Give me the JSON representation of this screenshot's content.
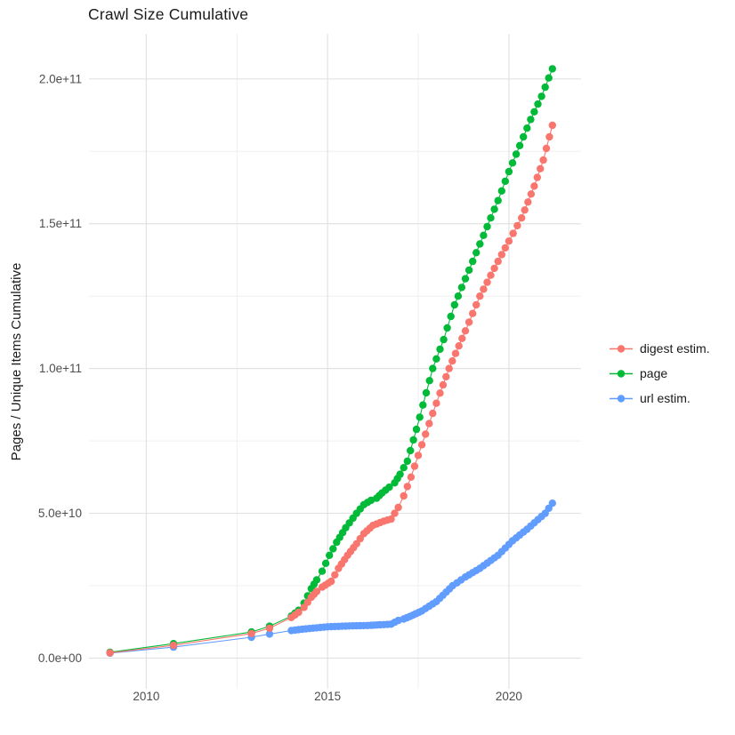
{
  "page": {
    "title": "Crawl Size Cumulative"
  },
  "chart_data": {
    "type": "scatter",
    "title": "Crawl Size Cumulative",
    "xlabel": "",
    "ylabel": "Pages / Unique Items Cumulative",
    "unit": "items, values stored in billions (1e9)",
    "grid": "major and minor, light grey, no panel border",
    "legend_position": "right-center",
    "x_axis": {
      "lim": [
        2008.42,
        2021.99
      ],
      "ticks": [
        {
          "v": 2010,
          "label": "2010"
        },
        {
          "v": 2015,
          "label": "2015"
        },
        {
          "v": 2020,
          "label": "2020"
        }
      ],
      "minor": [
        2012.5,
        2017.5
      ]
    },
    "y_axis": {
      "lim": [
        -10.6,
        215.6
      ],
      "ticks": [
        {
          "v": 0,
          "label": "0.0e+00"
        },
        {
          "v": 50,
          "label": "5.0e+10"
        },
        {
          "v": 100,
          "label": "1.0e+11"
        },
        {
          "v": 150,
          "label": "1.5e+11"
        },
        {
          "v": 200,
          "label": "2.0e+11"
        }
      ],
      "minor": [
        25,
        75,
        125,
        175
      ]
    },
    "dot_sampling_from": 2013.95,
    "dot_step_years": 0.1,
    "legend": {
      "items": [
        {
          "label": "digest estim.",
          "color": "#F8766D"
        },
        {
          "label": "page",
          "color": "#00BA38"
        },
        {
          "label": "url estim.",
          "color": "#619CFF"
        }
      ]
    },
    "series": [
      {
        "name": "page",
        "color": "#00BA38",
        "points": [
          [
            2009.0,
            2
          ],
          [
            2010.75,
            5
          ],
          [
            2012.9,
            9
          ],
          [
            2013.4,
            11
          ],
          [
            2014.0,
            14.5
          ],
          [
            2014.2,
            16.5
          ],
          [
            2014.35,
            19
          ],
          [
            2014.55,
            24
          ],
          [
            2014.7,
            27
          ],
          [
            2014.85,
            30
          ],
          [
            2015.05,
            35.5
          ],
          [
            2015.25,
            40
          ],
          [
            2015.5,
            45
          ],
          [
            2015.8,
            50
          ],
          [
            2016.0,
            53
          ],
          [
            2016.2,
            54.5
          ],
          [
            2016.35,
            55.2
          ],
          [
            2016.5,
            57
          ],
          [
            2016.7,
            59
          ],
          [
            2016.85,
            60.5
          ],
          [
            2017.0,
            63.5
          ],
          [
            2017.2,
            68
          ],
          [
            2017.45,
            79
          ],
          [
            2017.9,
            100
          ],
          [
            2018.2,
            110
          ],
          [
            2018.5,
            122
          ],
          [
            2018.8,
            131
          ],
          [
            2019.1,
            140
          ],
          [
            2019.4,
            149
          ],
          [
            2019.7,
            158
          ],
          [
            2020.0,
            168
          ],
          [
            2020.3,
            177
          ],
          [
            2020.6,
            186
          ],
          [
            2020.9,
            194
          ],
          [
            2021.2,
            203.5
          ]
        ]
      },
      {
        "name": "url estim.",
        "color": "#619CFF",
        "points": [
          [
            2009.0,
            1.7
          ],
          [
            2010.75,
            3.8
          ],
          [
            2012.9,
            7.2
          ],
          [
            2013.4,
            8.3
          ],
          [
            2014.0,
            9.5
          ],
          [
            2014.4,
            10.1
          ],
          [
            2015.0,
            10.8
          ],
          [
            2015.6,
            11.1
          ],
          [
            2016.2,
            11.3
          ],
          [
            2016.45,
            11.5
          ],
          [
            2016.75,
            11.7
          ],
          [
            2016.95,
            13
          ],
          [
            2017.1,
            13.5
          ],
          [
            2017.35,
            14.8
          ],
          [
            2017.6,
            16.3
          ],
          [
            2018.0,
            19.5
          ],
          [
            2018.45,
            25
          ],
          [
            2018.8,
            28
          ],
          [
            2019.2,
            31
          ],
          [
            2019.7,
            35.5
          ],
          [
            2020.1,
            40.5
          ],
          [
            2020.5,
            44.5
          ],
          [
            2021.0,
            50
          ],
          [
            2021.2,
            53.5
          ]
        ]
      },
      {
        "name": "digest estim.",
        "color": "#F8766D",
        "points": [
          [
            2009.0,
            1.8
          ],
          [
            2010.75,
            4.4
          ],
          [
            2012.9,
            8.5
          ],
          [
            2013.4,
            10.3
          ],
          [
            2014.0,
            14
          ],
          [
            2014.2,
            15.8
          ],
          [
            2014.35,
            17.5
          ],
          [
            2014.55,
            21
          ],
          [
            2014.7,
            23
          ],
          [
            2014.85,
            24.5
          ],
          [
            2015.1,
            26.5
          ],
          [
            2015.3,
            31
          ],
          [
            2015.55,
            35.5
          ],
          [
            2015.8,
            39.5
          ],
          [
            2016.0,
            43
          ],
          [
            2016.25,
            45.8
          ],
          [
            2016.55,
            47.3
          ],
          [
            2016.75,
            48
          ],
          [
            2016.95,
            52
          ],
          [
            2017.1,
            56
          ],
          [
            2017.3,
            62.5
          ],
          [
            2017.5,
            70
          ],
          [
            2017.8,
            81
          ],
          [
            2018.1,
            91.5
          ],
          [
            2018.35,
            100
          ],
          [
            2018.8,
            113
          ],
          [
            2019.2,
            125
          ],
          [
            2019.7,
            137
          ],
          [
            2020.0,
            144
          ],
          [
            2020.35,
            152
          ],
          [
            2020.7,
            163
          ],
          [
            2020.95,
            172
          ],
          [
            2021.2,
            184
          ]
        ]
      }
    ]
  }
}
